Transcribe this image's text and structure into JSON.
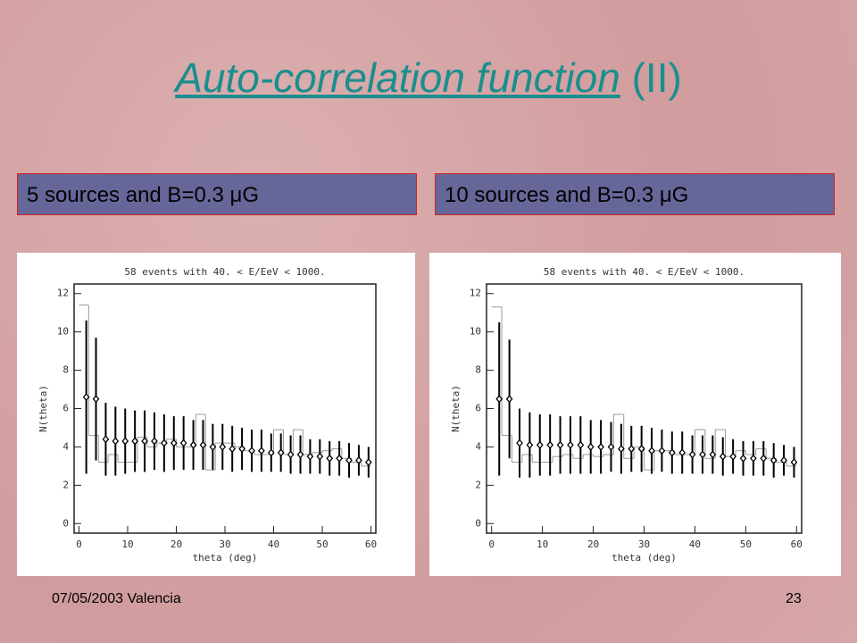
{
  "header": {
    "title_link": "Auto-correlation function",
    "title_rest": "(II)"
  },
  "panels": [
    {
      "label": "5 sources and B=0.3 μG"
    },
    {
      "label": "10 sources and B=0.3 μG"
    }
  ],
  "footer": {
    "left": "07/05/2003 Valencia",
    "page": "23"
  },
  "chart_data": [
    {
      "type": "errorbar",
      "title": "58 events with  40. < E/EeV <  1000.",
      "x_label": "theta (deg)",
      "y_label": "N(theta)",
      "xlim": [
        -1,
        61
      ],
      "ylim": [
        -0.5,
        12.5
      ],
      "xticks": [
        0,
        10,
        20,
        30,
        40,
        50,
        60
      ],
      "yticks": [
        0,
        2,
        4,
        6,
        8,
        10,
        12
      ],
      "color": "#000000",
      "hist_color": "#999999",
      "x": [
        1.5,
        3.5,
        5.5,
        7.5,
        9.5,
        11.5,
        13.5,
        15.5,
        17.5,
        19.5,
        21.5,
        23.5,
        25.5,
        27.5,
        29.5,
        31.5,
        33.5,
        35.5,
        37.5,
        39.5,
        41.5,
        43.5,
        45.5,
        47.5,
        49.5,
        51.5,
        53.5,
        55.5,
        57.5,
        59.5
      ],
      "values": [
        6.6,
        6.5,
        4.4,
        4.3,
        4.3,
        4.3,
        4.3,
        4.3,
        4.2,
        4.2,
        4.2,
        4.1,
        4.1,
        4.0,
        4.0,
        3.9,
        3.9,
        3.8,
        3.8,
        3.7,
        3.7,
        3.6,
        3.6,
        3.5,
        3.5,
        3.4,
        3.4,
        3.3,
        3.3,
        3.2
      ],
      "errors": [
        4.0,
        3.2,
        1.9,
        1.8,
        1.7,
        1.6,
        1.6,
        1.5,
        1.5,
        1.4,
        1.4,
        1.3,
        1.3,
        1.2,
        1.2,
        1.2,
        1.1,
        1.1,
        1.1,
        1.0,
        1.0,
        1.0,
        1.0,
        0.9,
        0.9,
        0.9,
        0.9,
        0.9,
        0.8,
        0.8
      ],
      "bins": [
        0,
        2,
        4,
        6,
        8,
        10,
        12,
        14,
        16,
        18,
        20,
        22,
        24,
        26,
        28,
        30,
        32,
        34,
        36,
        38,
        40,
        42,
        44,
        46,
        48,
        50,
        52,
        54,
        56,
        58,
        60
      ],
      "counts": [
        11.4,
        4.6,
        3.2,
        3.6,
        3.2,
        3.2,
        4.5,
        4.0,
        4.2,
        4.4,
        4.0,
        4.0,
        5.7,
        2.8,
        4.2,
        4.2,
        4.0,
        3.8,
        3.6,
        3.6,
        4.9,
        3.6,
        4.9,
        3.6,
        3.7,
        3.8,
        3.9,
        3.4,
        3.2,
        3.0
      ]
    },
    {
      "type": "errorbar",
      "title": "58 events with  40. < E/EeV <  1000.",
      "x_label": "theta (deg)",
      "y_label": "N(theta)",
      "xlim": [
        -1,
        61
      ],
      "ylim": [
        -0.5,
        12.5
      ],
      "xticks": [
        0,
        10,
        20,
        30,
        40,
        50,
        60
      ],
      "yticks": [
        0,
        2,
        4,
        6,
        8,
        10,
        12
      ],
      "color": "#000000",
      "hist_color": "#999999",
      "x": [
        1.5,
        3.5,
        5.5,
        7.5,
        9.5,
        11.5,
        13.5,
        15.5,
        17.5,
        19.5,
        21.5,
        23.5,
        25.5,
        27.5,
        29.5,
        31.5,
        33.5,
        35.5,
        37.5,
        39.5,
        41.5,
        43.5,
        45.5,
        47.5,
        49.5,
        51.5,
        53.5,
        55.5,
        57.5,
        59.5
      ],
      "values": [
        6.5,
        6.5,
        4.2,
        4.1,
        4.1,
        4.1,
        4.1,
        4.1,
        4.1,
        4.0,
        4.0,
        4.0,
        3.9,
        3.9,
        3.9,
        3.8,
        3.8,
        3.7,
        3.7,
        3.6,
        3.6,
        3.6,
        3.5,
        3.5,
        3.4,
        3.4,
        3.4,
        3.3,
        3.3,
        3.2
      ],
      "errors": [
        4.0,
        3.1,
        1.8,
        1.7,
        1.6,
        1.6,
        1.5,
        1.5,
        1.5,
        1.4,
        1.4,
        1.3,
        1.3,
        1.2,
        1.2,
        1.2,
        1.1,
        1.1,
        1.1,
        1.0,
        1.0,
        1.0,
        1.0,
        0.9,
        0.9,
        0.9,
        0.9,
        0.9,
        0.8,
        0.8
      ],
      "bins": [
        0,
        2,
        4,
        6,
        8,
        10,
        12,
        14,
        16,
        18,
        20,
        22,
        24,
        26,
        28,
        30,
        32,
        34,
        36,
        38,
        40,
        42,
        44,
        46,
        48,
        50,
        52,
        54,
        56,
        58,
        60
      ],
      "counts": [
        11.3,
        4.6,
        3.2,
        3.6,
        3.2,
        3.2,
        3.5,
        3.6,
        3.4,
        3.6,
        3.5,
        3.6,
        5.7,
        3.4,
        4.0,
        2.8,
        3.8,
        3.8,
        3.6,
        3.6,
        4.9,
        3.4,
        4.9,
        3.5,
        3.8,
        3.6,
        3.9,
        3.4,
        3.2,
        3.0
      ]
    }
  ]
}
